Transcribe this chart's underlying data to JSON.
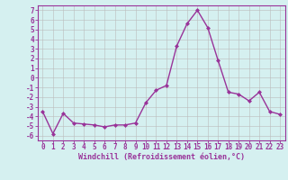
{
  "x": [
    0,
    1,
    2,
    3,
    4,
    5,
    6,
    7,
    8,
    9,
    10,
    11,
    12,
    13,
    14,
    15,
    16,
    17,
    18,
    19,
    20,
    21,
    22,
    23
  ],
  "y": [
    -3.5,
    -5.8,
    -3.7,
    -4.7,
    -4.8,
    -4.9,
    -5.1,
    -4.9,
    -4.9,
    -4.7,
    -2.6,
    -1.3,
    -0.8,
    3.3,
    5.6,
    7.0,
    5.2,
    1.8,
    -1.5,
    -1.7,
    -2.4,
    -1.5,
    -3.5,
    -3.8
  ],
  "line_color": "#993399",
  "marker": "D",
  "marker_size": 2,
  "bg_color": "#d5f0f0",
  "grid_color": "#bbbbbb",
  "xlabel": "Windchill (Refroidissement éolien,°C)",
  "xlabel_color": "#993399",
  "tick_color": "#993399",
  "ylim": [
    -6.5,
    7.5
  ],
  "xlim": [
    -0.5,
    23.5
  ],
  "yticks": [
    -6,
    -5,
    -4,
    -3,
    -2,
    -1,
    0,
    1,
    2,
    3,
    4,
    5,
    6,
    7
  ],
  "xticks": [
    0,
    1,
    2,
    3,
    4,
    5,
    6,
    7,
    8,
    9,
    10,
    11,
    12,
    13,
    14,
    15,
    16,
    17,
    18,
    19,
    20,
    21,
    22,
    23
  ],
  "tick_fontsize": 5.5,
  "xlabel_fontsize": 6.0,
  "linewidth": 1.0
}
